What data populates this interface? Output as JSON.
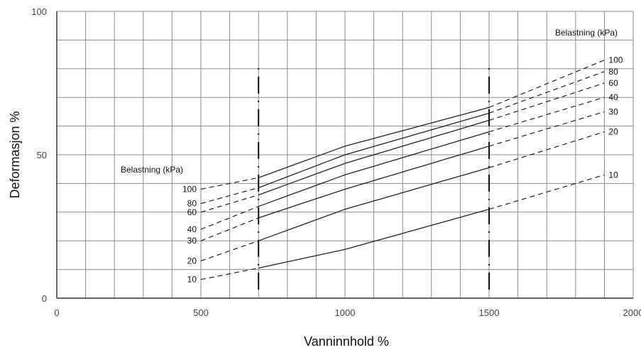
{
  "chart_data": {
    "type": "line",
    "xlabel": "Vanninnhold %",
    "ylabel": "Deformasjon %",
    "xlim": [
      0,
      2000
    ],
    "ylim": [
      0,
      100
    ],
    "x_ticks": [
      "0",
      "500",
      "1000",
      "1500",
      "2000"
    ],
    "y_ticks": [
      "0",
      "50",
      "100"
    ],
    "grid": true,
    "x_minor_step": 100,
    "y_minor_step": 10,
    "left_annotation": "Belastning (kPa)",
    "right_annotation": "Belastning (kPa)",
    "measured_range_x": [
      700,
      1500
    ],
    "series": [
      {
        "name": "10",
        "x": [
          500,
          700,
          1000,
          1500,
          1900
        ],
        "y": [
          6.5,
          10.5,
          17,
          31,
          43
        ]
      },
      {
        "name": "20",
        "x": [
          500,
          700,
          1000,
          1500,
          1900
        ],
        "y": [
          13,
          20,
          31,
          45.5,
          58
        ]
      },
      {
        "name": "30",
        "x": [
          500,
          700,
          1000,
          1500,
          1900
        ],
        "y": [
          20,
          28,
          38,
          53,
          65
        ]
      },
      {
        "name": "40",
        "x": [
          500,
          700,
          1000,
          1500,
          1900
        ],
        "y": [
          24,
          32,
          43,
          58,
          70
        ]
      },
      {
        "name": "60",
        "x": [
          500,
          700,
          1000,
          1500,
          1900
        ],
        "y": [
          30,
          36,
          47,
          62,
          75
        ]
      },
      {
        "name": "80",
        "x": [
          500,
          700,
          1000,
          1500,
          1900
        ],
        "y": [
          33,
          38.5,
          50,
          64.5,
          79
        ]
      },
      {
        "name": "100",
        "x": [
          500,
          700,
          1000,
          1500,
          1900
        ],
        "y": [
          38,
          42,
          53,
          66.5,
          83
        ]
      }
    ]
  }
}
